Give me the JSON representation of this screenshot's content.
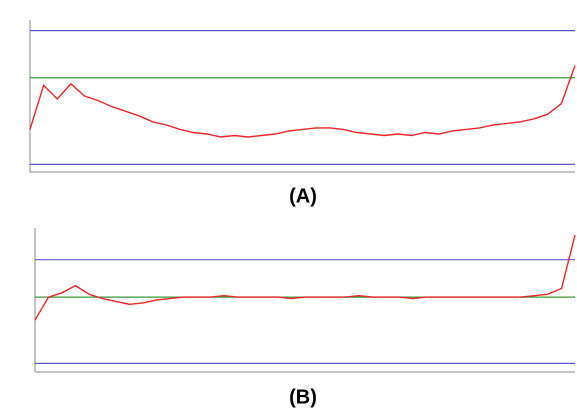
{
  "chart_data": [
    {
      "type": "line",
      "label": "(A)",
      "x": [
        0,
        2.5,
        5,
        7.5,
        10,
        12.5,
        15,
        17.5,
        20,
        22.5,
        25,
        27.5,
        30,
        32.5,
        35,
        37.5,
        40,
        42.5,
        45,
        47.5,
        50,
        52.5,
        55,
        57.5,
        60,
        62.5,
        65,
        67.5,
        70,
        72.5,
        75,
        77.5,
        80,
        82.5,
        85,
        87.5,
        90,
        92.5,
        95,
        97.5,
        100
      ],
      "xlim": [
        0,
        100
      ],
      "ylim": [
        0,
        100
      ],
      "series": [
        {
          "color": "#e8262a",
          "values": [
            28,
            57,
            48,
            58,
            50,
            47,
            43,
            40,
            37,
            33,
            31,
            28,
            26,
            25,
            23,
            24,
            23,
            24,
            25,
            27,
            28,
            29,
            29,
            28,
            26,
            25,
            24,
            25,
            24,
            26,
            25,
            27,
            28,
            29,
            31,
            32,
            33,
            35,
            38,
            45,
            70
          ]
        }
      ],
      "hlines": [
        {
          "color": "#5b5bc8",
          "value": 93
        },
        {
          "color": "#3a9a3a",
          "value": 62
        },
        {
          "color": "#5b5bc8",
          "value": 5
        }
      ]
    },
    {
      "type": "line",
      "label": "(B)",
      "x": [
        0,
        2.5,
        5,
        7.5,
        10,
        12.5,
        15,
        17.5,
        20,
        22.5,
        25,
        27.5,
        30,
        32.5,
        35,
        37.5,
        40,
        42.5,
        45,
        47.5,
        50,
        52.5,
        55,
        57.5,
        60,
        62.5,
        65,
        67.5,
        70,
        72.5,
        75,
        77.5,
        80,
        82.5,
        85,
        87.5,
        90,
        92.5,
        95,
        97.5,
        100
      ],
      "xlim": [
        0,
        100
      ],
      "ylim": [
        0,
        100
      ],
      "series": [
        {
          "color": "#e8262a",
          "values": [
            36,
            52,
            55,
            60,
            54,
            51,
            49,
            47,
            48,
            50,
            51,
            52,
            52,
            52,
            53,
            52,
            52,
            52,
            52,
            51,
            52,
            52,
            52,
            52,
            53,
            52,
            52,
            52,
            51,
            52,
            52,
            52,
            52,
            52,
            52,
            52,
            52,
            53,
            54,
            58,
            95
          ]
        }
      ],
      "hlines": [
        {
          "color": "#5b5bc8",
          "value": 78
        },
        {
          "color": "#3a9a3a",
          "value": 52
        },
        {
          "color": "#5b5bc8",
          "value": 6
        }
      ]
    }
  ]
}
